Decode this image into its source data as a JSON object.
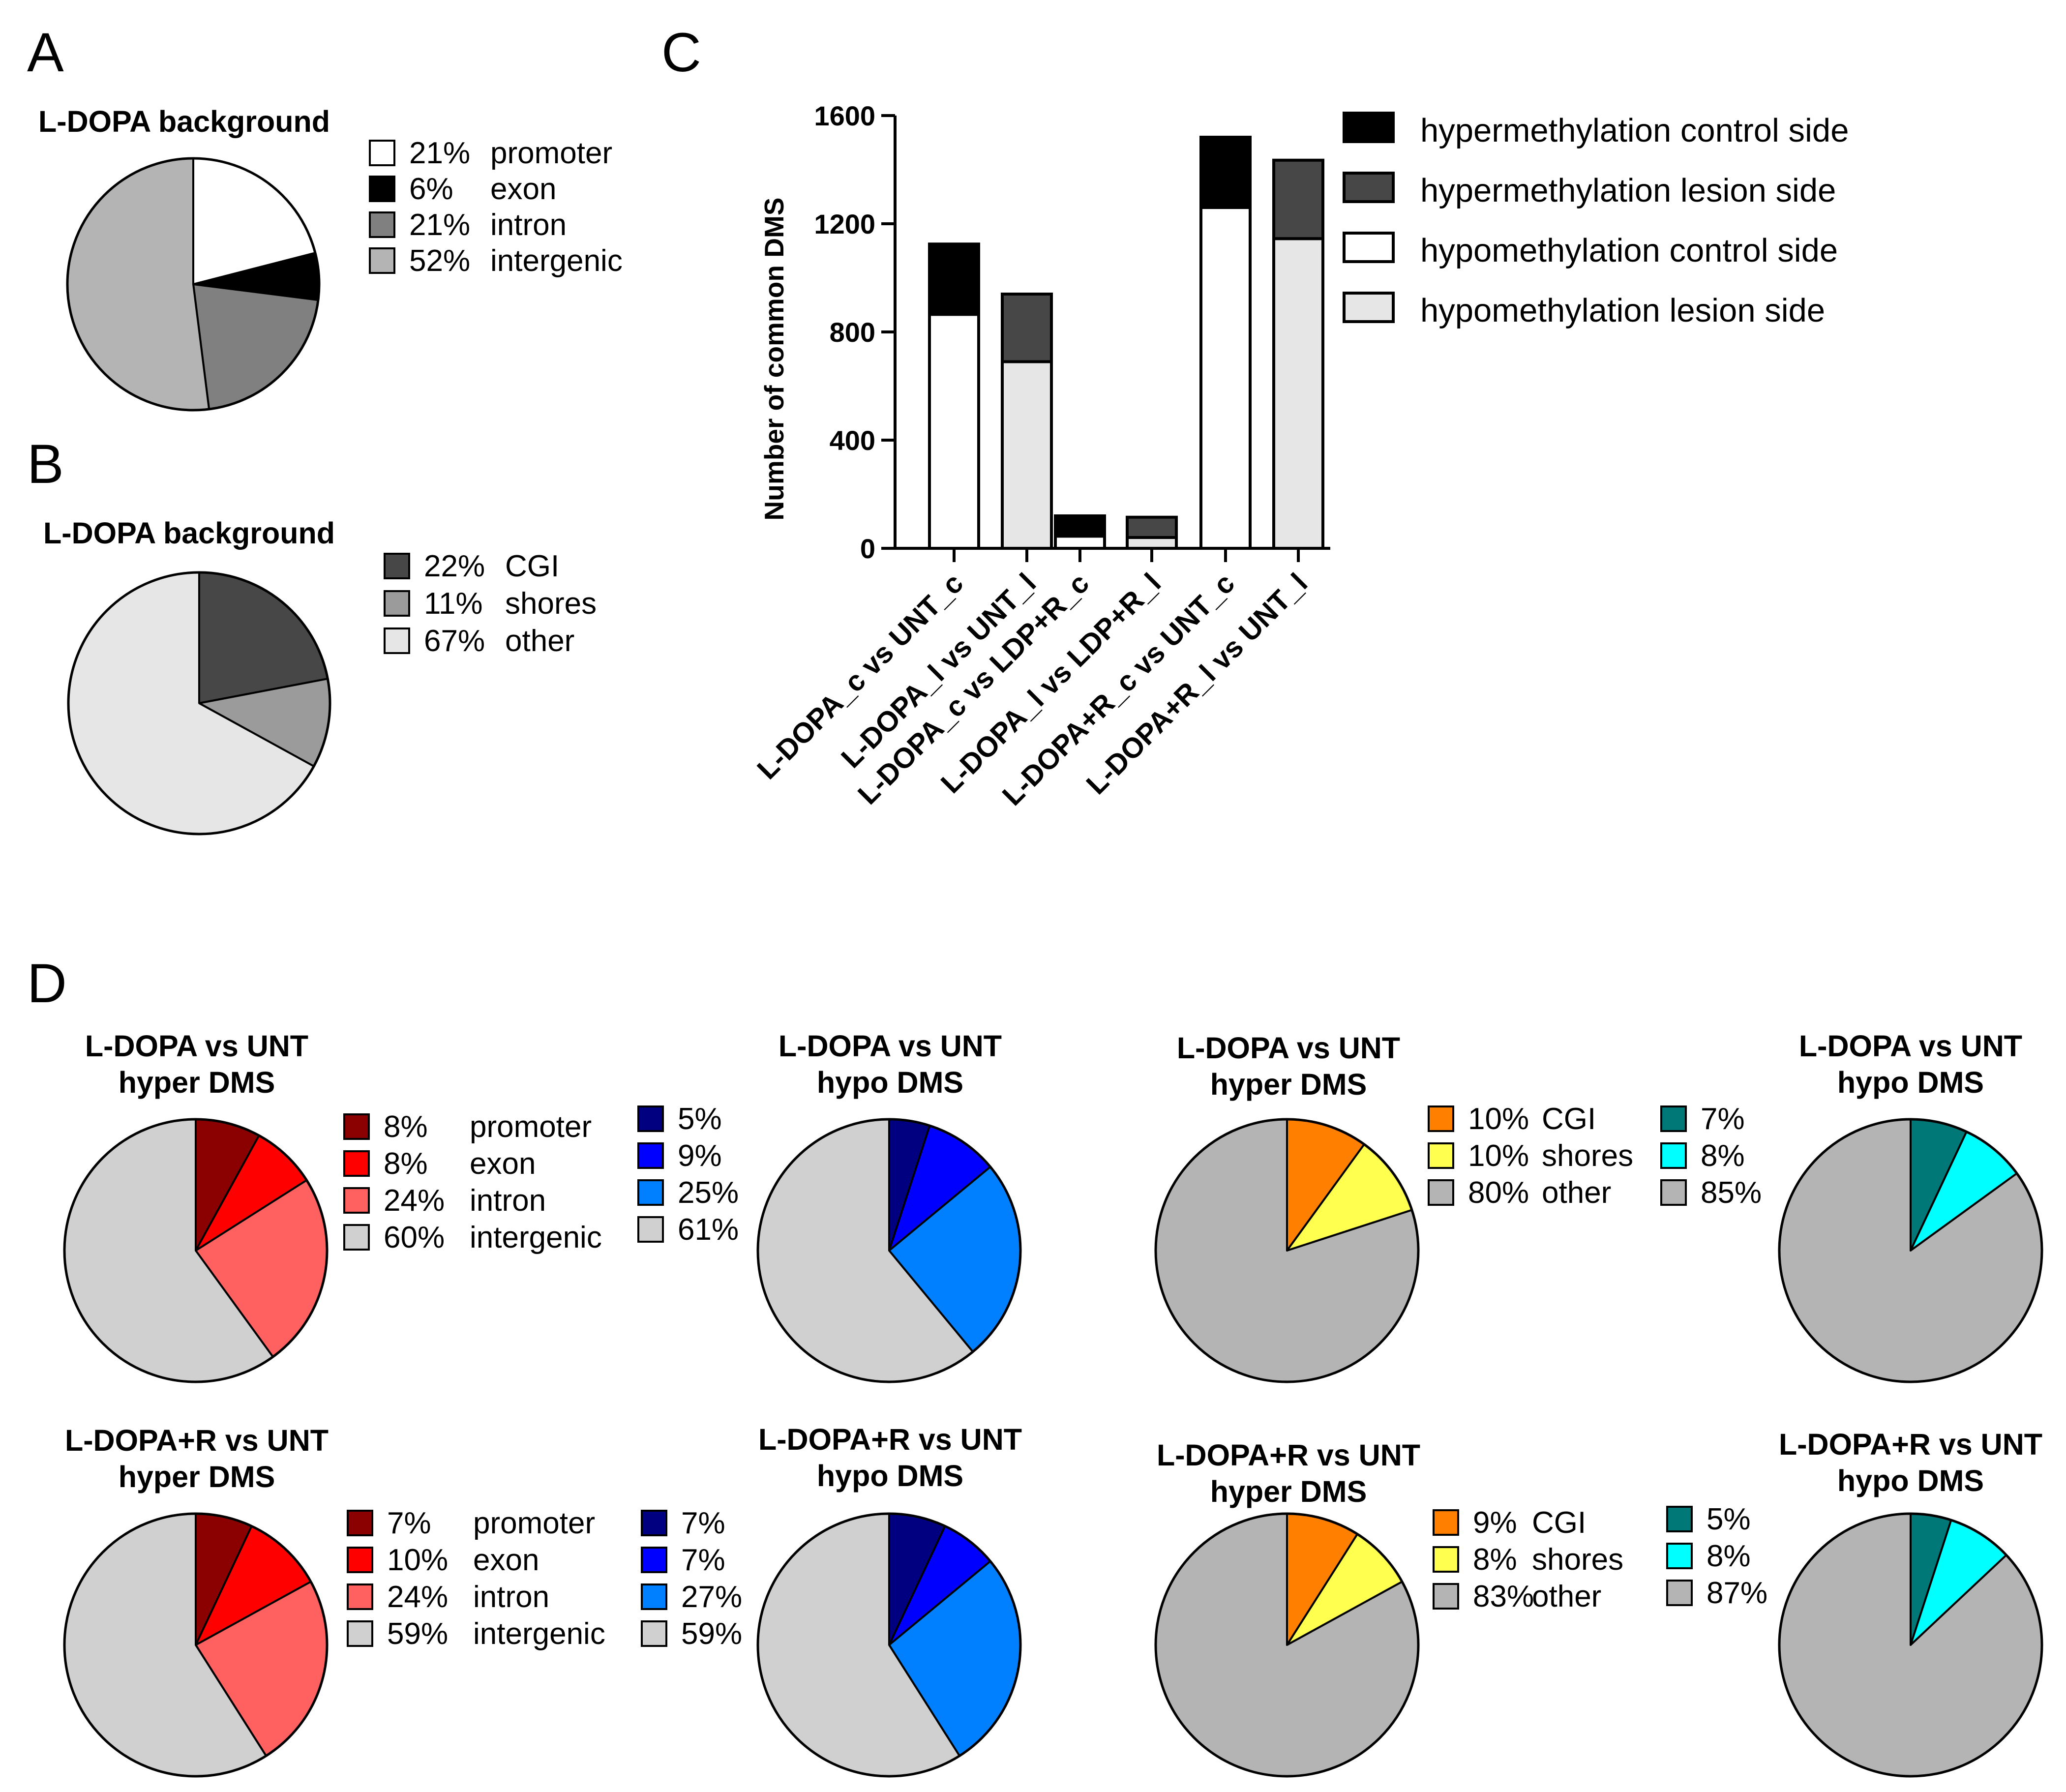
{
  "panels": {
    "a": "A",
    "b": "B",
    "c": "C",
    "d": "D"
  },
  "colors": {
    "promoter": "#ffffff",
    "exon": "#000000",
    "intron": "#808080",
    "intergenic": "#b4b4b4",
    "cgi": "#474747",
    "shores": "#9b9b9b",
    "other": "#e6e6e6",
    "hyper_promoter": "#8b0000",
    "hyper_exon": "#ff0000",
    "hyper_intron": "#ff6060",
    "hyper_intergenic": "#d0d0d0",
    "hypo_promoter": "#000080",
    "hypo_exon": "#0000ff",
    "hypo_intron": "#0080ff",
    "hypo_intergenic": "#d0d0d0",
    "hyper_cgi": "#ff8000",
    "hyper_shores": "#ffff50",
    "hyper_other": "#b4b4b4",
    "hypo_cgi": "#007878",
    "hypo_shores": "#00ffff",
    "hypo_other": "#b4b4b4",
    "hyper_ctrl": "#000000",
    "hyper_lesion": "#474747",
    "hypo_ctrl": "#ffffff",
    "hypo_lesion": "#e6e6e6"
  },
  "chart_data": [
    {
      "id": "A",
      "type": "pie",
      "title": "L-DOPA background",
      "slices": [
        {
          "pct": "21%",
          "value": 21,
          "label": "promoter",
          "color": "#ffffff"
        },
        {
          "pct": "6%",
          "value": 6,
          "label": "exon",
          "color": "#000000"
        },
        {
          "pct": "21%",
          "value": 21,
          "label": "intron",
          "color": "#808080"
        },
        {
          "pct": "52%",
          "value": 52,
          "label": "intergenic",
          "color": "#b4b4b4"
        }
      ]
    },
    {
      "id": "B",
      "type": "pie",
      "title": "L-DOPA background",
      "slices": [
        {
          "pct": "22%",
          "value": 22,
          "label": "CGI",
          "color": "#474747"
        },
        {
          "pct": "11%",
          "value": 11,
          "label": "shores",
          "color": "#9b9b9b"
        },
        {
          "pct": "67%",
          "value": 67,
          "label": "other",
          "color": "#e6e6e6"
        }
      ]
    },
    {
      "id": "C",
      "type": "bar",
      "stacked": true,
      "ylabel": "Number of common DMS",
      "ylim": [
        0,
        1600
      ],
      "yticks": [
        0,
        400,
        800,
        1200,
        1600
      ],
      "categories": [
        "L-DOPA_c vs UNT_c",
        "L-DOPA_l vs UNT_l",
        "L-DOPA_c vs LDP+R_c",
        "L-DOPA_l vs LDP+R_l",
        "L-DOPA+R_c vs UNT_c",
        "L-DOPA+R_l vs UNT_l"
      ],
      "bars": [
        {
          "lower": 865,
          "upper": 1125,
          "lower_color": "#ffffff",
          "upper_color": "#000000"
        },
        {
          "lower": 690,
          "upper": 940,
          "lower_color": "#e6e6e6",
          "upper_color": "#474747"
        },
        {
          "lower": 45,
          "upper": 120,
          "lower_color": "#ffffff",
          "upper_color": "#000000"
        },
        {
          "lower": 40,
          "upper": 115,
          "lower_color": "#e6e6e6",
          "upper_color": "#474747"
        },
        {
          "lower": 1260,
          "upper": 1520,
          "lower_color": "#ffffff",
          "upper_color": "#000000"
        },
        {
          "lower": 1145,
          "upper": 1435,
          "lower_color": "#e6e6e6",
          "upper_color": "#474747"
        }
      ],
      "legend": [
        {
          "label": "hypermethylation control side",
          "color": "#000000"
        },
        {
          "label": "hypermethylation lesion side",
          "color": "#474747"
        },
        {
          "label": "hypomethylation control side",
          "color": "#ffffff"
        },
        {
          "label": "hypomethylation lesion side",
          "color": "#e6e6e6"
        }
      ]
    },
    {
      "id": "D1",
      "type": "pie",
      "title": [
        "L-DOPA vs UNT",
        "hyper DMS"
      ],
      "slices": [
        {
          "pct": "8%",
          "value": 8,
          "label": "promoter",
          "color": "#8b0000"
        },
        {
          "pct": "8%",
          "value": 8,
          "label": "exon",
          "color": "#ff0000"
        },
        {
          "pct": "24%",
          "value": 24,
          "label": "intron",
          "color": "#ff6060"
        },
        {
          "pct": "60%",
          "value": 60,
          "label": "intergenic",
          "color": "#d0d0d0"
        }
      ]
    },
    {
      "id": "D2",
      "type": "pie",
      "title": [
        "L-DOPA vs UNT",
        "hypo DMS"
      ],
      "slices": [
        {
          "pct": "5%",
          "value": 5,
          "label": "",
          "color": "#000080"
        },
        {
          "pct": "9%",
          "value": 9,
          "label": "",
          "color": "#0000ff"
        },
        {
          "pct": "25%",
          "value": 25,
          "label": "",
          "color": "#0080ff"
        },
        {
          "pct": "61%",
          "value": 61,
          "label": "",
          "color": "#d0d0d0"
        }
      ]
    },
    {
      "id": "D3",
      "type": "pie",
      "title": [
        "L-DOPA vs UNT",
        "hyper DMS"
      ],
      "slices": [
        {
          "pct": "10%",
          "value": 10,
          "label": "CGI",
          "color": "#ff8000"
        },
        {
          "pct": "10%",
          "value": 10,
          "label": "shores",
          "color": "#ffff50"
        },
        {
          "pct": "80%",
          "value": 80,
          "label": "other",
          "color": "#b4b4b4"
        }
      ]
    },
    {
      "id": "D4",
      "type": "pie",
      "title": [
        "L-DOPA vs UNT",
        "hypo DMS"
      ],
      "slices": [
        {
          "pct": "7%",
          "value": 7,
          "label": "",
          "color": "#007878"
        },
        {
          "pct": "8%",
          "value": 8,
          "label": "",
          "color": "#00ffff"
        },
        {
          "pct": "85%",
          "value": 85,
          "label": "",
          "color": "#b4b4b4"
        }
      ]
    },
    {
      "id": "D5",
      "type": "pie",
      "title": [
        "L-DOPA+R vs UNT",
        "hyper DMS"
      ],
      "slices": [
        {
          "pct": "7%",
          "value": 7,
          "label": "promoter",
          "color": "#8b0000"
        },
        {
          "pct": "10%",
          "value": 10,
          "label": "exon",
          "color": "#ff0000"
        },
        {
          "pct": "24%",
          "value": 24,
          "label": "intron",
          "color": "#ff6060"
        },
        {
          "pct": "59%",
          "value": 59,
          "label": "intergenic",
          "color": "#d0d0d0"
        }
      ]
    },
    {
      "id": "D6",
      "type": "pie",
      "title": [
        "L-DOPA+R vs UNT",
        "hypo DMS"
      ],
      "slices": [
        {
          "pct": "7%",
          "value": 7,
          "label": "",
          "color": "#000080"
        },
        {
          "pct": "7%",
          "value": 7,
          "label": "",
          "color": "#0000ff"
        },
        {
          "pct": "27%",
          "value": 27,
          "label": "",
          "color": "#0080ff"
        },
        {
          "pct": "59%",
          "value": 59,
          "label": "",
          "color": "#d0d0d0"
        }
      ]
    },
    {
      "id": "D7",
      "type": "pie",
      "title": [
        "L-DOPA+R vs UNT",
        "hyper DMS"
      ],
      "slices": [
        {
          "pct": "9%",
          "value": 9,
          "label": "CGI",
          "color": "#ff8000"
        },
        {
          "pct": "8%",
          "value": 8,
          "label": "shores",
          "color": "#ffff50"
        },
        {
          "pct": "83%",
          "value": 83,
          "label": "other",
          "color": "#b4b4b4"
        }
      ]
    },
    {
      "id": "D8",
      "type": "pie",
      "title": [
        "L-DOPA+R vs UNT",
        "hypo DMS"
      ],
      "slices": [
        {
          "pct": "5%",
          "value": 5,
          "label": "",
          "color": "#007878"
        },
        {
          "pct": "8%",
          "value": 8,
          "label": "",
          "color": "#00ffff"
        },
        {
          "pct": "87%",
          "value": 87,
          "label": "",
          "color": "#b4b4b4"
        }
      ]
    }
  ]
}
